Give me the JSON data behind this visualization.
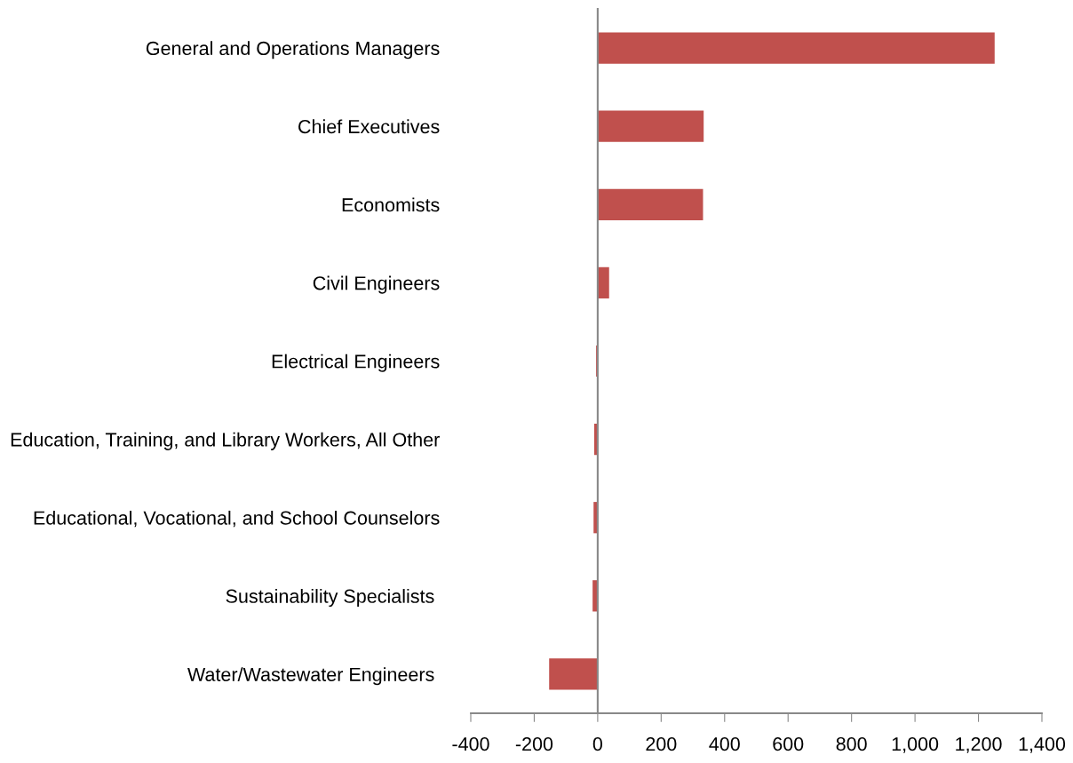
{
  "chart_data": {
    "type": "bar",
    "orientation": "horizontal",
    "categories": [
      "General and Operations Managers",
      "Chief Executives",
      "Economists",
      "Civil Engineers",
      "Electrical Engineers",
      "Education, Training, and Library Workers, All Other",
      "Educational, Vocational, and School Counselors",
      "Sustainability Specialists ",
      "Water/Wastewater Engineers "
    ],
    "values": [
      1251,
      334,
      332,
      36,
      -5,
      -11,
      -13,
      -16,
      -153
    ],
    "color": "#c0504d",
    "xlim": [
      -400,
      1400
    ],
    "xticks": [
      -400,
      -200,
      0,
      200,
      400,
      600,
      800,
      {
        "value": 1000,
        "label": "1,000"
      },
      {
        "value": 1200,
        "label": "1,200"
      },
      {
        "value": 1400,
        "label": "1,400"
      }
    ],
    "legend": false
  }
}
